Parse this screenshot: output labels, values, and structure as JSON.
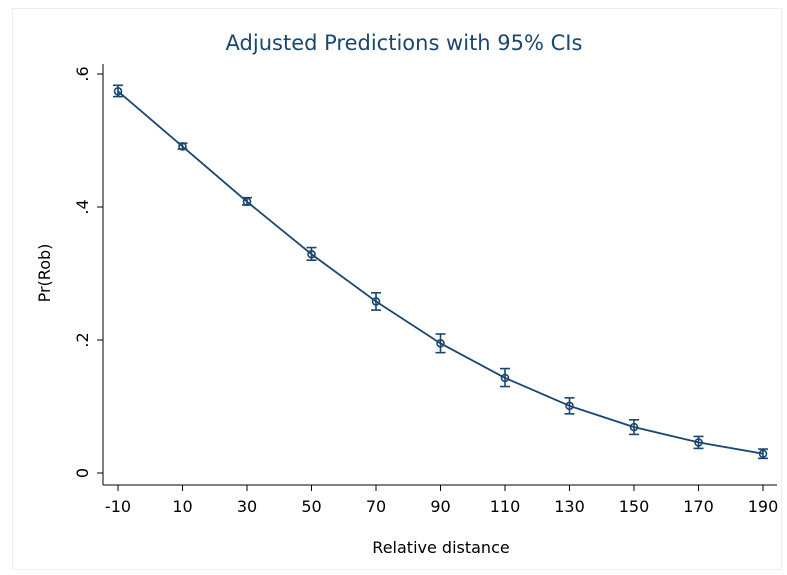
{
  "chart_data": {
    "type": "line",
    "title": "Adjusted Predictions with 95% CIs",
    "xlabel": "Relative distance",
    "ylabel": "Pr(Rob)",
    "x": [
      -10,
      10,
      30,
      50,
      70,
      90,
      110,
      130,
      150,
      170,
      190
    ],
    "x_tick_labels": [
      "-10",
      "10",
      "30",
      "50",
      "70",
      "90",
      "110",
      "130",
      "150",
      "170",
      "190"
    ],
    "y_ticks": [
      0,
      0.2,
      0.4,
      0.6
    ],
    "y_tick_labels": [
      "0",
      ".2",
      ".4",
      ".6"
    ],
    "xlim": [
      -10,
      190
    ],
    "ylim": [
      0,
      0.6
    ],
    "grid": false,
    "series": [
      {
        "values": [
          0.574,
          0.491,
          0.408,
          0.329,
          0.258,
          0.195,
          0.143,
          0.101,
          0.069,
          0.046,
          0.029
        ],
        "ci_lower": [
          0.566,
          0.487,
          0.403,
          0.32,
          0.245,
          0.181,
          0.13,
          0.089,
          0.058,
          0.037,
          0.022
        ],
        "ci_upper": [
          0.583,
          0.496,
          0.414,
          0.339,
          0.271,
          0.209,
          0.157,
          0.113,
          0.08,
          0.055,
          0.036
        ]
      }
    ],
    "colors": {
      "series": "#1a476f",
      "title": "#1a476f",
      "axis": "#000000"
    }
  }
}
